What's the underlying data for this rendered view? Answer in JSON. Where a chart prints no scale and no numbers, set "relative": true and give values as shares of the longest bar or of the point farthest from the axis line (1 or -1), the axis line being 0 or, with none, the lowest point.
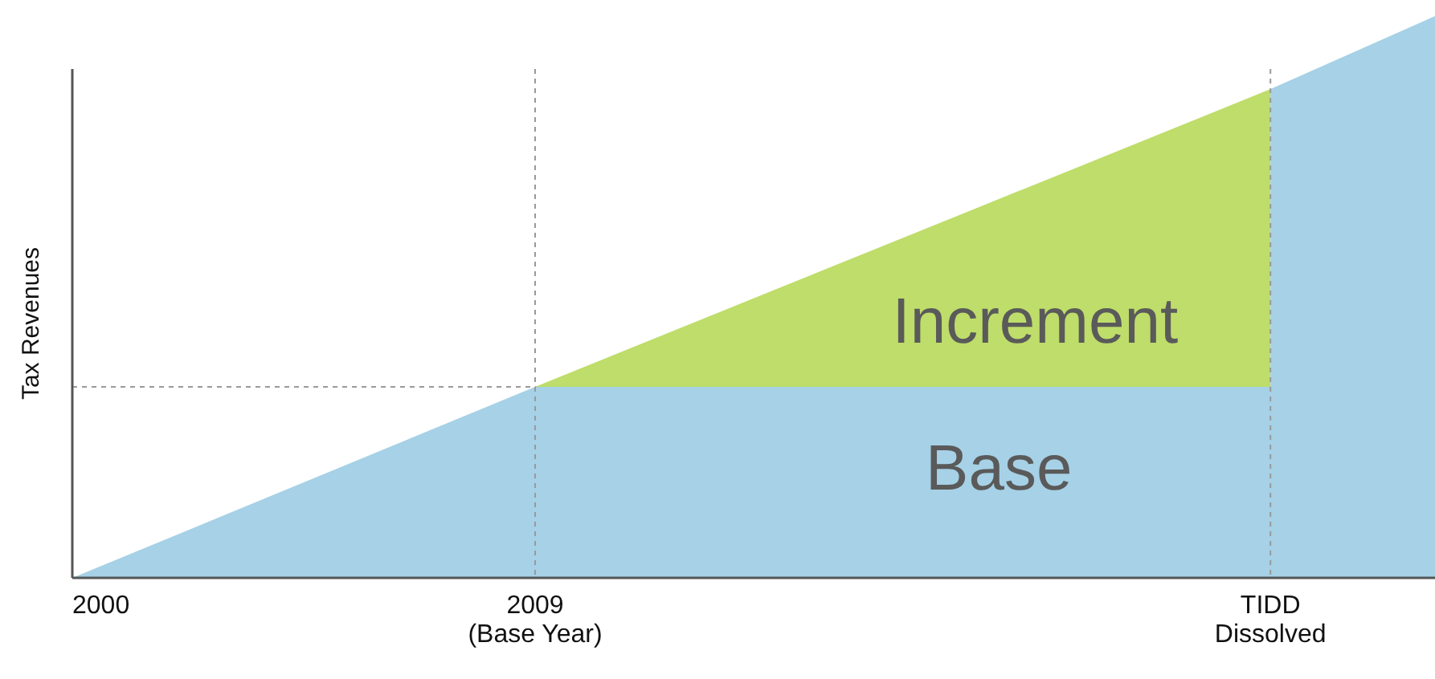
{
  "chart_data": {
    "type": "area",
    "relative": true,
    "ylabel": "Tax Revenues",
    "x": [
      2000,
      2009,
      2023.3,
      2023.3,
      2026.5
    ],
    "xlim": [
      2000,
      2026.5
    ],
    "xticks": [
      {
        "value": 2000,
        "label": "2000"
      },
      {
        "value": 2009,
        "label": "2009\n(Base Year)"
      },
      {
        "value": 2023.3,
        "label": "TIDD\nDissolved"
      }
    ],
    "series": [
      {
        "name": "Increment",
        "color": "#bedd6a",
        "x": [
          2009,
          2023.3
        ],
        "values": [
          0.34,
          0.87
        ]
      },
      {
        "name": "Base",
        "color": "#a6d1e6",
        "values": [
          0,
          0.34,
          0.34,
          0.87,
          1
        ]
      }
    ],
    "ref_lines": [
      {
        "axis": "x",
        "value": 2009,
        "color": "#999999",
        "line_style": "dashed"
      },
      {
        "axis": "x",
        "value": 2023.3,
        "color": "#999999",
        "line_style": "dashed"
      },
      {
        "axis": "y",
        "value": 0.34,
        "color": "#999999",
        "line_style": "dashed"
      }
    ]
  }
}
